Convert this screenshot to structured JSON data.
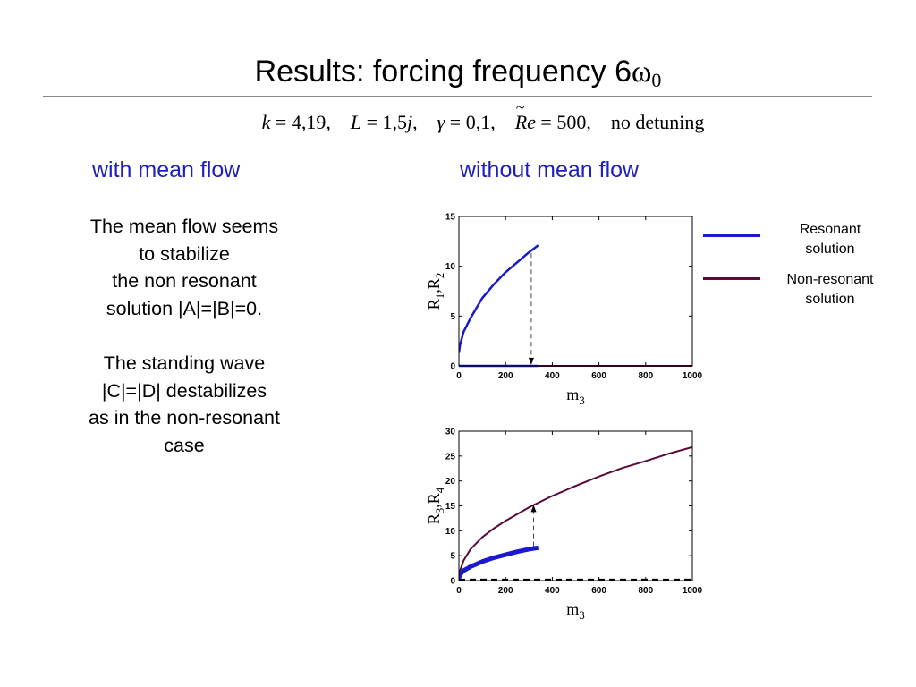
{
  "title": {
    "text": "Results: forcing frequency 6",
    "omega": "ω",
    "sub": "0"
  },
  "params": {
    "k_lhs": "k",
    "k_rhs": " = 4,19,",
    "L_lhs": "L",
    "L_rhs": " = 1,5",
    "j": "j",
    "j_tail": ",",
    "gamma": "γ",
    "gamma_rhs": " = 0,1,",
    "re_tilde": "~",
    "re": "Re",
    "re_rhs": " = 500,",
    "detuning": "no detuning"
  },
  "headers": {
    "left": "with mean flow",
    "right": "without mean flow"
  },
  "body": {
    "p1": [
      "The mean flow seems",
      "to stabilize",
      "the non resonant",
      "solution |A|=|B|=0."
    ],
    "p2": [
      "The standing wave",
      "|C|=|D| destabilizes",
      "as in the non-resonant",
      "case"
    ]
  },
  "legend": {
    "items": [
      {
        "label1": "Resonant",
        "label2": "solution",
        "color": "#1a1acc"
      },
      {
        "label1": "Non-resonant",
        "label2": "solution",
        "color": "#5a0a3a"
      }
    ]
  },
  "chart_data": [
    {
      "type": "line",
      "xlabel": "m",
      "xlabel_sub": "3",
      "ylabel_parts": [
        "R",
        "1",
        ",R",
        "2"
      ],
      "xlim": [
        0,
        1000
      ],
      "ylim": [
        0,
        15
      ],
      "xticks": [
        0,
        200,
        400,
        600,
        800,
        1000
      ],
      "yticks": [
        0,
        5,
        10,
        15
      ],
      "series": [
        {
          "color": "#1a1acc",
          "width": 2.5,
          "style": "solid",
          "x": [
            0,
            5,
            20,
            50,
            100,
            150,
            200,
            250,
            300,
            340
          ],
          "y": [
            1.3,
            2.1,
            3.4,
            4.8,
            6.8,
            8.2,
            9.4,
            10.4,
            11.4,
            12.1
          ]
        },
        {
          "color": "#1a1acc",
          "width": 2.5,
          "style": "solid",
          "x": [
            0,
            340
          ],
          "y": [
            0,
            0
          ]
        },
        {
          "color": "#5a0a3a",
          "width": 2,
          "style": "solid",
          "x": [
            340,
            1000
          ],
          "y": [
            0,
            0
          ]
        }
      ],
      "arrow": {
        "x": 310,
        "y_from": 11.3,
        "y_to": 0.1
      }
    },
    {
      "type": "line",
      "xlabel": "m",
      "xlabel_sub": "3",
      "ylabel_parts": [
        "R",
        "3",
        ",R",
        "4"
      ],
      "xlim": [
        0,
        1000
      ],
      "ylim": [
        0,
        30
      ],
      "xticks": [
        0,
        200,
        400,
        600,
        800,
        1000
      ],
      "yticks": [
        0,
        5,
        10,
        15,
        20,
        25,
        30
      ],
      "series": [
        {
          "color": "#5a0a3a",
          "width": 2,
          "style": "solid",
          "x": [
            0,
            5,
            20,
            50,
            100,
            150,
            200,
            300,
            400,
            500,
            600,
            700,
            800,
            900,
            1000
          ],
          "y": [
            0.3,
            2.0,
            4.0,
            6.3,
            8.7,
            10.5,
            12.0,
            14.7,
            17.0,
            19.0,
            20.9,
            22.6,
            24.0,
            25.5,
            26.8
          ]
        },
        {
          "color": "#1a1acc",
          "width": 5,
          "style": "solid",
          "x": [
            0,
            5,
            20,
            50,
            100,
            150,
            200,
            250,
            300,
            340
          ],
          "y": [
            0.5,
            1.2,
            2.0,
            2.8,
            3.8,
            4.6,
            5.2,
            5.8,
            6.3,
            6.6
          ]
        },
        {
          "color": "#000000",
          "width": 2,
          "style": "dashed",
          "x": [
            0,
            1000
          ],
          "y": [
            0.2,
            0.2
          ]
        }
      ],
      "arrow": {
        "x": 320,
        "y_from": 6.9,
        "y_to": 15.2
      }
    }
  ]
}
